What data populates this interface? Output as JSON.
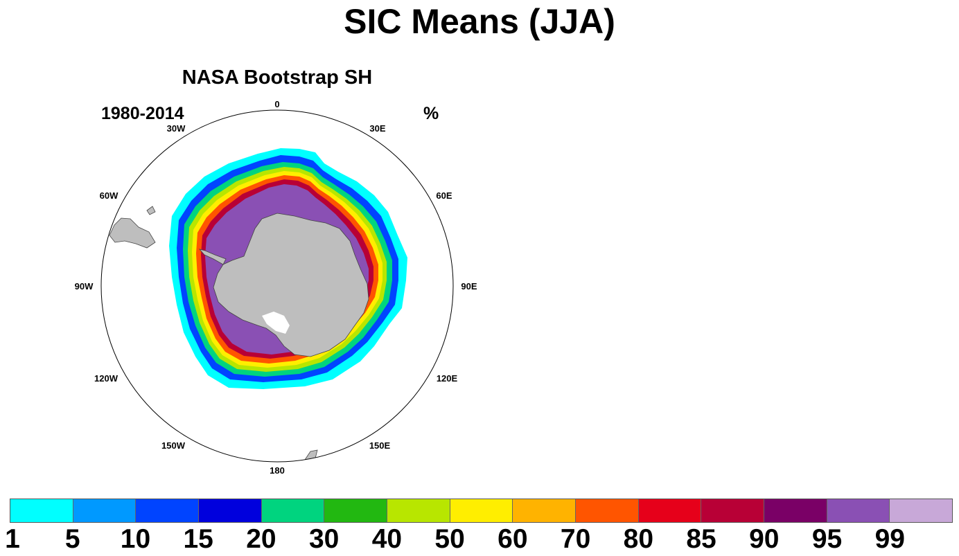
{
  "title": "SIC Means (JJA)",
  "subtitle": "NASA Bootstrap SH",
  "period": "1980-2014",
  "units": "%",
  "longitude_labels": [
    "0",
    "30E",
    "60E",
    "90E",
    "120E",
    "150E",
    "180",
    "150W",
    "120W",
    "90W",
    "60W",
    "30W"
  ],
  "colorbar": {
    "colors": [
      "#00ffff",
      "#0099ff",
      "#0044ff",
      "#0000dd",
      "#00d47f",
      "#22b811",
      "#b8e600",
      "#ffee00",
      "#ffb300",
      "#ff5500",
      "#e6001a",
      "#b80036",
      "#7a0066",
      "#8a50b4",
      "#c8a8d8"
    ],
    "labels": [
      "1",
      "5",
      "10",
      "15",
      "20",
      "30",
      "40",
      "50",
      "60",
      "70",
      "80",
      "85",
      "90",
      "95",
      "99"
    ]
  },
  "map": {
    "projection": "south-polar-stereographic",
    "land_color": "#bebebe",
    "ice_free_color": "#ffffff"
  }
}
